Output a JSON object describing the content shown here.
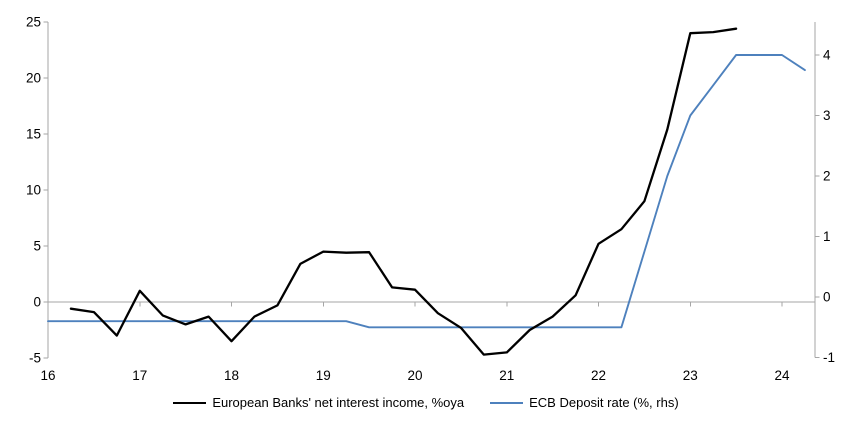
{
  "chart_data": {
    "type": "line",
    "title": "",
    "legend_position": "bottom",
    "grid": "zero-baseline-only",
    "x_axis": {
      "label": "",
      "ticks": [
        "16",
        "17",
        "18",
        "19",
        "20",
        "21",
        "22",
        "23",
        "24"
      ],
      "tick_values": [
        16,
        17,
        18,
        19,
        20,
        21,
        22,
        23,
        24
      ],
      "range": [
        16,
        24.36
      ]
    },
    "left_y_axis": {
      "label": "",
      "ticks": [
        "25",
        "20",
        "15",
        "10",
        "5",
        "0",
        "-5"
      ],
      "tick_values": [
        25,
        20,
        15,
        10,
        5,
        0,
        -5
      ],
      "range": [
        -5,
        25
      ]
    },
    "right_y_axis": {
      "label": "",
      "ticks": [
        "4",
        "3",
        "2",
        "1",
        "0",
        "-1"
      ],
      "tick_values": [
        4,
        3,
        2,
        1,
        0,
        -1
      ],
      "range": [
        -1,
        4.55
      ]
    },
    "series": [
      {
        "name": "European Banks' net interest income, %oya",
        "axis": "left",
        "color": "#000000",
        "x": [
          16.25,
          16.5,
          16.75,
          17.0,
          17.25,
          17.5,
          17.75,
          18.0,
          18.25,
          18.5,
          18.75,
          19.0,
          19.25,
          19.5,
          19.75,
          20.0,
          20.25,
          20.5,
          20.75,
          21.0,
          21.25,
          21.5,
          21.75,
          22.0,
          22.25,
          22.5,
          22.75,
          23.0,
          23.25,
          23.5
        ],
        "y": [
          -0.6,
          -0.9,
          -3.0,
          1.0,
          -1.2,
          -2.0,
          -1.3,
          -3.5,
          -1.3,
          -0.3,
          3.4,
          4.5,
          4.4,
          4.45,
          1.3,
          1.1,
          -1.0,
          -2.3,
          -4.7,
          -4.5,
          -2.5,
          -1.3,
          0.6,
          5.2,
          6.5,
          9.0,
          15.4,
          24.0,
          24.1,
          24.4
        ]
      },
      {
        "name": "ECB Deposit rate (%, rhs)",
        "axis": "right",
        "color": "#4e81bd",
        "x": [
          16.0,
          16.25,
          16.5,
          16.75,
          17.0,
          17.25,
          17.5,
          17.75,
          18.0,
          18.25,
          18.5,
          18.75,
          19.0,
          19.25,
          19.5,
          19.75,
          20.0,
          20.25,
          20.5,
          20.75,
          21.0,
          21.25,
          21.5,
          21.75,
          22.0,
          22.25,
          22.5,
          22.75,
          23.0,
          23.25,
          23.5,
          23.75,
          24.0,
          24.25
        ],
        "y": [
          -0.4,
          -0.4,
          -0.4,
          -0.4,
          -0.4,
          -0.4,
          -0.4,
          -0.4,
          -0.4,
          -0.4,
          -0.4,
          -0.4,
          -0.4,
          -0.4,
          -0.5,
          -0.5,
          -0.5,
          -0.5,
          -0.5,
          -0.5,
          -0.5,
          -0.5,
          -0.5,
          -0.5,
          -0.5,
          -0.5,
          0.75,
          2.0,
          3.0,
          3.5,
          4.0,
          4.0,
          4.0,
          3.75
        ]
      }
    ],
    "colors": {
      "axis": "#a6a6a6",
      "text": "#000000",
      "background": "#ffffff"
    }
  }
}
